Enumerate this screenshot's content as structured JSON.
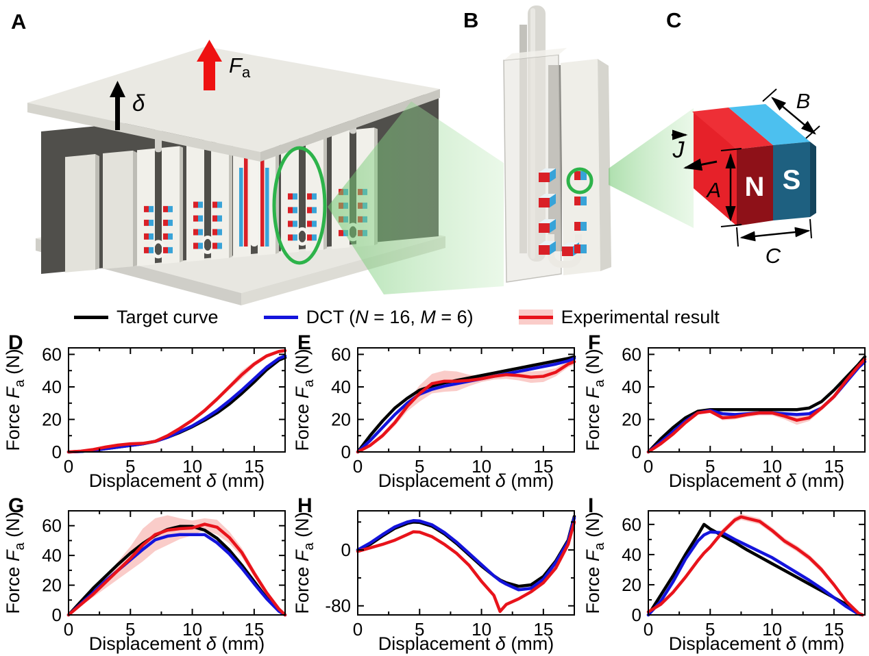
{
  "figure": {
    "panel_letters": {
      "a": "A",
      "b": "B",
      "c": "C"
    },
    "illustration": {
      "applied_force": {
        "symbol": "F",
        "subscript": "a"
      },
      "displacement_symbol": "δ",
      "magnet": {
        "north": "N",
        "south": "S",
        "dim_a": "A",
        "dim_b": "B",
        "dim_c": "C",
        "magnetization": "J"
      },
      "colors": {
        "accent_green": "#2db34a",
        "beam_green": "#8fd48f",
        "magnet_red": "#d92027",
        "magnet_blue": "#38a3d8",
        "magnet_dark_red": "#8e1118",
        "magnet_dark_teal": "#1e6080",
        "magnet_cyan": "#4cc0ef",
        "force_arrow_red": "#ee1111"
      }
    }
  },
  "legend": {
    "items": [
      {
        "label_parts": [
          {
            "t": "Target curve"
          }
        ],
        "color": "#000000",
        "band": false
      },
      {
        "label_parts": [
          {
            "t": "DCT ("
          },
          {
            "t": "N",
            "i": true
          },
          {
            "t": " = 16, "
          },
          {
            "t": "M",
            "i": true
          },
          {
            "t": " = 6)"
          }
        ],
        "color": "#1414dc",
        "band": false
      },
      {
        "label_parts": [
          {
            "t": "Experimental result"
          }
        ],
        "color": "#e8131b",
        "band": true,
        "band_color": "rgba(240,85,75,0.30)"
      }
    ]
  },
  "axis_labels": {
    "x": {
      "pre": "Displacement ",
      "symbol": "δ",
      "post": " (mm)"
    },
    "y": {
      "pre": "Force ",
      "symbol": "F",
      "subscript": "a",
      "post": " (N)"
    }
  },
  "chart_data": [
    {
      "letter": "D",
      "type": "line",
      "xlim": [
        0,
        17.5
      ],
      "ylim": [
        0,
        64
      ],
      "xticks": [
        0,
        5,
        10,
        15
      ],
      "xminors": [
        2.5,
        7.5,
        12.5
      ],
      "yticks": [
        0,
        20,
        40,
        60
      ],
      "yminors": [
        10,
        30,
        50
      ],
      "x": [
        0,
        1,
        2,
        3,
        4,
        5,
        6,
        7,
        8,
        9,
        10,
        11,
        12,
        13,
        14,
        15,
        16,
        17,
        17.5
      ],
      "series": [
        {
          "name": "Target curve",
          "color": "#000000",
          "values": [
            0,
            0.3,
            1,
            2,
            3,
            4,
            5,
            6.5,
            9,
            12,
            15.5,
            19.5,
            24,
            29.5,
            36,
            43,
            50.5,
            56.5,
            58
          ]
        },
        {
          "name": "DCT (N = 16, M = 6)",
          "color": "#1414dc",
          "values": [
            0,
            0.3,
            1,
            2,
            3,
            4,
            5,
            6.5,
            9,
            12.5,
            16,
            20.5,
            25.5,
            31.5,
            38,
            45,
            52,
            57.5,
            59
          ]
        },
        {
          "name": "Experimental result",
          "color": "#e8131b",
          "band_color": "rgba(240,85,75,0.30)",
          "values": [
            0,
            0.5,
            1.5,
            3,
            4.2,
            5,
            5.3,
            6.5,
            10,
            14.5,
            19.5,
            25.5,
            32.5,
            40,
            47.5,
            54,
            59,
            61.8,
            62.3
          ],
          "spread": [
            0.5,
            0.5,
            0.6,
            0.8,
            0.8,
            0.8,
            0.8,
            0.8,
            1,
            1,
            1.2,
            1.4,
            1.5,
            1.6,
            2.4,
            1.6,
            1.2,
            1,
            1
          ]
        }
      ]
    },
    {
      "letter": "E",
      "type": "line",
      "xlim": [
        0,
        17.5
      ],
      "ylim": [
        0,
        64
      ],
      "xticks": [
        0,
        5,
        10,
        15
      ],
      "xminors": [
        2.5,
        7.5,
        12.5
      ],
      "yticks": [
        0,
        20,
        40,
        60
      ],
      "yminors": [
        10,
        30,
        50
      ],
      "x": [
        0,
        1,
        2,
        3,
        4,
        5,
        6,
        7,
        8,
        9,
        10,
        11,
        12,
        13,
        14,
        15,
        16,
        17,
        17.5
      ],
      "series": [
        {
          "name": "Target curve",
          "color": "#000000",
          "values": [
            0,
            10,
            19,
            27,
            33,
            38,
            40.5,
            42.5,
            44,
            45.5,
            47,
            48.5,
            50,
            51.5,
            53,
            54.5,
            56,
            57.5,
            58.5
          ]
        },
        {
          "name": "DCT (N = 16, M = 6)",
          "color": "#1414dc",
          "values": [
            0,
            7,
            15,
            23,
            30,
            35.5,
            38.5,
            40.5,
            42,
            43.5,
            45,
            46.5,
            48,
            49.5,
            51,
            52.5,
            54,
            56,
            57.5
          ]
        },
        {
          "name": "Experimental result",
          "color": "#e8131b",
          "band_color": "rgba(240,85,75,0.30)",
          "values": [
            0,
            4,
            10,
            18,
            28,
            36,
            42,
            43.5,
            43.5,
            44,
            45,
            46.5,
            47.5,
            47,
            46,
            46.5,
            49,
            54,
            55.5
          ],
          "spread": [
            0.5,
            1,
            1.5,
            2,
            3,
            5,
            6,
            6.5,
            6,
            3.5,
            2,
            2,
            2.5,
            3,
            3.5,
            3.5,
            2.5,
            2,
            2
          ]
        }
      ]
    },
    {
      "letter": "F",
      "type": "line",
      "xlim": [
        0,
        17.5
      ],
      "ylim": [
        0,
        64
      ],
      "xticks": [
        0,
        5,
        10,
        15
      ],
      "xminors": [
        2.5,
        7.5,
        12.5
      ],
      "yticks": [
        0,
        20,
        40,
        60
      ],
      "yminors": [
        10,
        30,
        50
      ],
      "x": [
        0,
        1,
        2,
        3,
        4,
        5,
        6,
        7,
        8,
        9,
        10,
        11,
        12,
        13,
        14,
        15,
        16,
        17,
        17.5
      ],
      "series": [
        {
          "name": "Target curve",
          "color": "#000000",
          "values": [
            0,
            8,
            15,
            21,
            25,
            26,
            26,
            26,
            26,
            26,
            26,
            26,
            26,
            27,
            31,
            38,
            46,
            54,
            58.5
          ]
        },
        {
          "name": "DCT (N = 16, M = 6)",
          "color": "#1414dc",
          "values": [
            0,
            6,
            12.5,
            19,
            24,
            25.5,
            23.5,
            23,
            23.5,
            24,
            24,
            23.5,
            23,
            23.5,
            27,
            34,
            43,
            52,
            55.5
          ]
        },
        {
          "name": "Experimental result",
          "color": "#e8131b",
          "band_color": "rgba(240,85,75,0.30)",
          "values": [
            0,
            5,
            11,
            18,
            24,
            25,
            21,
            21.5,
            23,
            24,
            24,
            22,
            19.5,
            21,
            27,
            34,
            44,
            53,
            57
          ],
          "spread": [
            0.3,
            0.5,
            0.8,
            1,
            1,
            1,
            1.5,
            1.5,
            1.5,
            1.5,
            1.5,
            2,
            2.8,
            2,
            1.5,
            1.5,
            1.5,
            1.5,
            1.5
          ]
        }
      ]
    },
    {
      "letter": "G",
      "type": "line",
      "xlim": [
        0,
        17.5
      ],
      "ylim": [
        0,
        70
      ],
      "xticks": [
        0,
        5,
        10,
        15
      ],
      "xminors": [
        2.5,
        7.5,
        12.5
      ],
      "yticks": [
        0,
        20,
        40,
        60
      ],
      "yminors": [
        10,
        30,
        50
      ],
      "x": [
        0,
        1,
        2,
        3,
        4,
        5,
        6,
        7,
        8,
        9,
        10,
        11,
        12,
        13,
        14,
        15,
        16,
        17,
        17.5
      ],
      "series": [
        {
          "name": "Target curve",
          "color": "#000000",
          "values": [
            0,
            9,
            18,
            26,
            34,
            41.5,
            48,
            53.5,
            57.5,
            59.5,
            59.5,
            57,
            51.5,
            43.5,
            33.5,
            22.5,
            11.5,
            3,
            0
          ]
        },
        {
          "name": "DCT (N = 16, M = 6)",
          "color": "#1414dc",
          "values": [
            0,
            7.5,
            15,
            23,
            30,
            37,
            44,
            50.5,
            53,
            54,
            54,
            54,
            48.5,
            41,
            31.5,
            21,
            11,
            2.5,
            0
          ]
        },
        {
          "name": "Experimental result",
          "color": "#e8131b",
          "band_color": "rgba(240,85,75,0.30)",
          "values": [
            0,
            7,
            14,
            22,
            30,
            38,
            47,
            54,
            57,
            58,
            58.5,
            61,
            59,
            52,
            42,
            28,
            15,
            4,
            0
          ],
          "spread": [
            0.5,
            1,
            2,
            4,
            6,
            8,
            11,
            11,
            10,
            7,
            5,
            4,
            5,
            4,
            3,
            2.5,
            2,
            1,
            0.5
          ]
        }
      ]
    },
    {
      "letter": "H",
      "type": "line",
      "xlim": [
        0,
        17.5
      ],
      "ylim": [
        -93,
        56
      ],
      "xticks": [
        0,
        5,
        10,
        15
      ],
      "xminors": [
        2.5,
        7.5,
        12.5
      ],
      "yticks": [
        0,
        -80
      ],
      "yminors": [
        40,
        -40
      ],
      "x": [
        0,
        1,
        2,
        3,
        4,
        4.5,
        5,
        6,
        7,
        8,
        9,
        10,
        11,
        11.5,
        12,
        13,
        14,
        15,
        16,
        17,
        17.5
      ],
      "series": [
        {
          "name": "Target curve",
          "color": "#000000",
          "values": [
            0,
            8,
            20,
            31,
            38,
            40,
            39.5,
            34,
            23,
            9,
            -7,
            -23,
            -37,
            -43,
            -47,
            -52,
            -50,
            -38,
            -16,
            14,
            48
          ]
        },
        {
          "name": "DCT (N = 16, M = 6)",
          "color": "#1414dc",
          "values": [
            0,
            10,
            22,
            33,
            40,
            42,
            41.5,
            36,
            25,
            11,
            -5,
            -21,
            -37,
            -44,
            -49,
            -57,
            -55,
            -42,
            -18,
            12,
            46
          ]
        },
        {
          "name": "Experimental result",
          "color": "#e8131b",
          "band_color": "rgba(240,85,75,0.30)",
          "values": [
            -2,
            3,
            8,
            14,
            22,
            26,
            25.5,
            19,
            8,
            -5,
            -22,
            -45,
            -65,
            -88,
            -78,
            -70,
            -60,
            -47,
            -26,
            8,
            40
          ],
          "spread": [
            1,
            1,
            1,
            1,
            1.5,
            1.5,
            1.5,
            1.5,
            1.5,
            1.5,
            2,
            2,
            2.5,
            3,
            2.5,
            2,
            2,
            2,
            1.5,
            1.5,
            1.5
          ]
        }
      ]
    },
    {
      "letter": "I",
      "type": "line",
      "xlim": [
        0,
        17.5
      ],
      "ylim": [
        0,
        69
      ],
      "xticks": [
        0,
        5,
        10,
        15
      ],
      "xminors": [
        2.5,
        7.5,
        12.5
      ],
      "yticks": [
        0,
        20,
        40,
        60
      ],
      "yminors": [
        10,
        30,
        50
      ],
      "x": [
        0,
        1,
        2,
        3,
        4,
        4.5,
        5,
        6,
        7,
        7.5,
        8,
        9,
        10,
        11,
        12,
        13,
        14,
        15,
        16,
        17,
        17.3
      ],
      "series": [
        {
          "name": "Target curve",
          "color": "#000000",
          "values": [
            0,
            13,
            26,
            40,
            53,
            60,
            57,
            52.5,
            48,
            45.5,
            43,
            38.5,
            34,
            29.5,
            25,
            20.5,
            16,
            11.5,
            7,
            1,
            0
          ]
        },
        {
          "name": "DCT (N = 16, M = 6)",
          "color": "#1414dc",
          "values": [
            0,
            9,
            22,
            37,
            49,
            53,
            55,
            54.5,
            50,
            48,
            46,
            42,
            38,
            33,
            28,
            23,
            17.5,
            11.5,
            5.5,
            0.5,
            0
          ]
        },
        {
          "name": "Experimental result",
          "color": "#e8131b",
          "band_color": "rgba(240,85,75,0.30)",
          "values": [
            2,
            7,
            15,
            25,
            36,
            41,
            45,
            55,
            63,
            65,
            64,
            62,
            56,
            49,
            44,
            38,
            30,
            20,
            9,
            1,
            0
          ],
          "spread": [
            1,
            1,
            1,
            1.5,
            1.5,
            1.5,
            1.5,
            2,
            2,
            2,
            2,
            2,
            2,
            2,
            2,
            2,
            2,
            1.5,
            1,
            0.5,
            0.5
          ]
        }
      ]
    }
  ]
}
